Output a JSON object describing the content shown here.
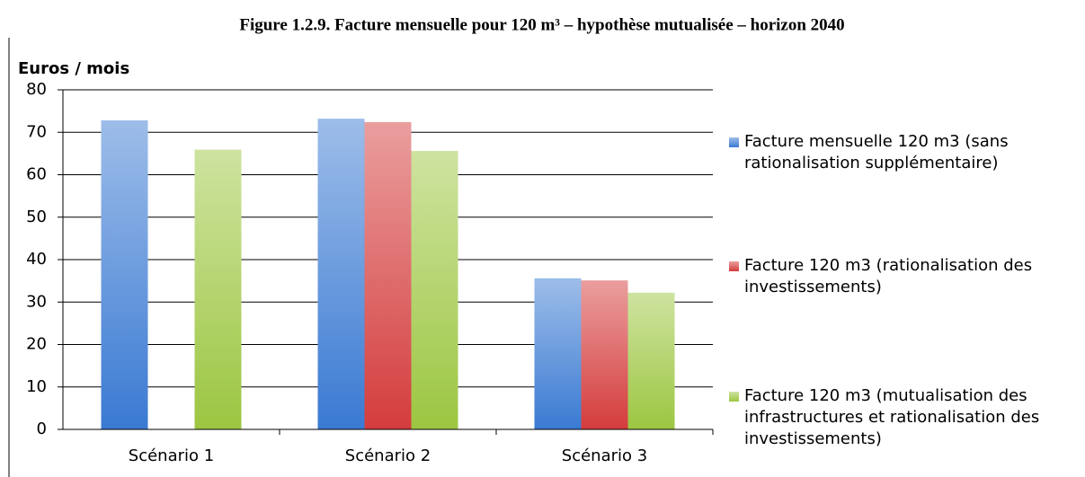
{
  "chart_data": {
    "type": "bar",
    "title": "Figure 1.2.9. Facture mensuelle pour 120 m³ – hypothèse mutualisée – horizon 2040",
    "y_label": "Euros / mois",
    "categories": [
      "Scénario 1",
      "Scénario 2",
      "Scénario 3"
    ],
    "series": [
      {
        "name": "Facture mensuelle 120 m3 (sans rationalisation supplémentaire)",
        "color": "#3a7ad2",
        "values": [
          72.8,
          73.2,
          35.6
        ]
      },
      {
        "name": "Facture 120 m3 (rationalisation des investissements)",
        "color": "#d43c3c",
        "values": [
          null,
          72.4,
          35.1
        ]
      },
      {
        "name": "Facture 120 m3 (mutualisation des infrastructures et rationalisation des investissements)",
        "color": "#9cc641",
        "values": [
          65.9,
          65.6,
          32.2
        ]
      }
    ],
    "ylim": [
      0,
      80
    ],
    "yticks": [
      0,
      10,
      20,
      30,
      40,
      50,
      60,
      70,
      80
    ],
    "grid": true,
    "legend": "right"
  }
}
